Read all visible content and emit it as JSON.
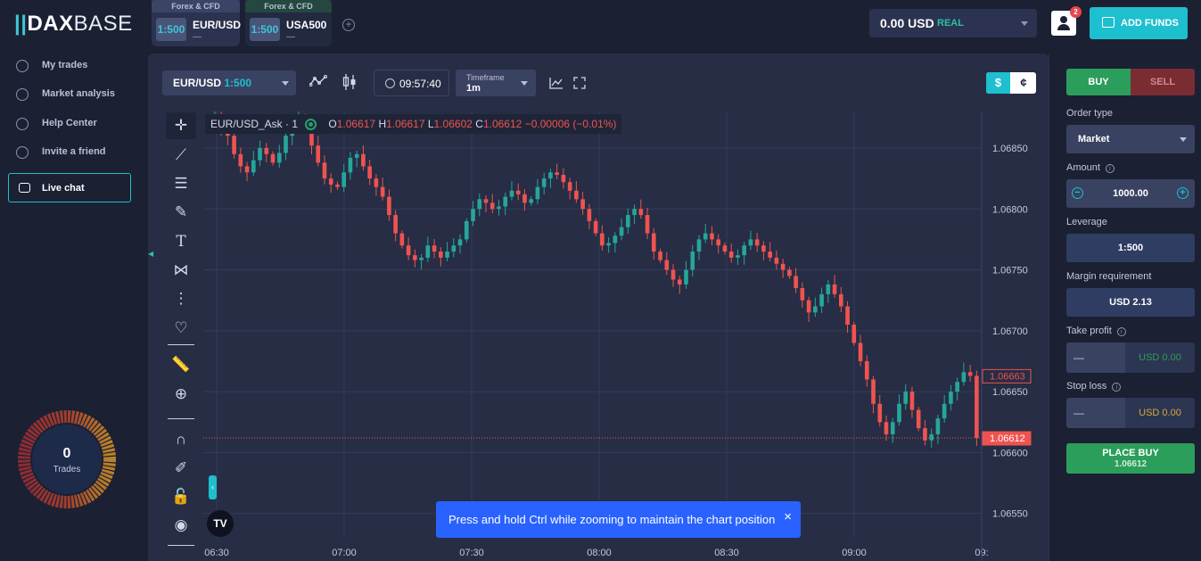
{
  "header": {
    "logo_mark": "||",
    "logo_bold": "DAX",
    "logo_rest": "BASE",
    "tabs": [
      {
        "category": "Forex & CFD",
        "leverage": "1:500",
        "symbol": "EUR/USD",
        "sub": "—"
      },
      {
        "category": "Forex & CFD",
        "leverage": "1:500",
        "symbol": "USA500",
        "sub": "—"
      }
    ],
    "balance": {
      "amount": "0.00 USD",
      "mode": "REAL"
    },
    "notification_count": "2",
    "add_funds_label": "ADD FUNDS"
  },
  "sidebar": {
    "items": [
      {
        "label": "My trades"
      },
      {
        "label": "Market analysis"
      },
      {
        "label": "Help Center"
      },
      {
        "label": "Invite a friend"
      }
    ],
    "live_chat": "Live chat",
    "trades": {
      "value": "0",
      "label": "Trades"
    }
  },
  "chart_toolbar": {
    "symbol": "EUR/USD",
    "symbol_leverage": "1:500",
    "time": "09:57:40",
    "timeframe_label": "Timeframe",
    "timeframe_value": "1m",
    "currency_a": "$",
    "currency_b": "¢"
  },
  "chart_legend": {
    "title": "EUR/USD_Ask · 1",
    "o_label": "O",
    "o": "1.06617",
    "h_label": "H",
    "h": "1.06617",
    "l_label": "L",
    "l": "1.06602",
    "c_label": "C",
    "c": "1.06612",
    "change": "−0.00006 (−0.01%)"
  },
  "chart_data": {
    "type": "candlestick",
    "x_ticks": [
      "06:30",
      "07:00",
      "07:30",
      "08:00",
      "08:30",
      "09:00",
      "09:"
    ],
    "y_ticks": [
      "1.06850",
      "1.06800",
      "1.06750",
      "1.06700",
      "1.06650",
      "1.06600",
      "1.06550"
    ],
    "ylim": [
      1.0653,
      1.0688
    ],
    "price_markers": [
      {
        "value": "1.06663",
        "style": "outline"
      },
      {
        "value": "1.06612",
        "style": "filled"
      }
    ],
    "current_price_line": 1.06612,
    "closes": [
      1.06872,
      1.06875,
      1.06866,
      1.0686,
      1.06845,
      1.06835,
      1.0683,
      1.0684,
      1.0685,
      1.06845,
      1.06838,
      1.06846,
      1.0686,
      1.0687,
      1.06873,
      1.06868,
      1.06852,
      1.06838,
      1.06825,
      1.0682,
      1.06818,
      1.0683,
      1.06842,
      1.06845,
      1.06835,
      1.06825,
      1.06818,
      1.0681,
      1.06795,
      1.0678,
      1.0677,
      1.06762,
      1.06758,
      1.0676,
      1.0677,
      1.06765,
      1.0676,
      1.06765,
      1.0677,
      1.06775,
      1.0679,
      1.068,
      1.06808,
      1.06805,
      1.068,
      1.06802,
      1.0681,
      1.06815,
      1.06812,
      1.06805,
      1.06808,
      1.06818,
      1.06825,
      1.0683,
      1.06828,
      1.06822,
      1.06815,
      1.06808,
      1.068,
      1.0679,
      1.0678,
      1.0677,
      1.06772,
      1.06778,
      1.06785,
      1.06795,
      1.068,
      1.06795,
      1.0678,
      1.06765,
      1.06758,
      1.0675,
      1.06742,
      1.06738,
      1.0675,
      1.06765,
      1.06775,
      1.0678,
      1.06775,
      1.0677,
      1.06765,
      1.0676,
      1.06762,
      1.0677,
      1.06775,
      1.0677,
      1.06765,
      1.0676,
      1.06755,
      1.0675,
      1.06745,
      1.06735,
      1.06725,
      1.06715,
      1.0672,
      1.0673,
      1.06738,
      1.0673,
      1.0672,
      1.06705,
      1.0669,
      1.06675,
      1.0666,
      1.0664,
      1.06625,
      1.06615,
      1.06625,
      1.0664,
      1.0665,
      1.06635,
      1.0662,
      1.0661,
      1.06615,
      1.06628,
      1.0664,
      1.0665,
      1.06658,
      1.06666,
      1.06663,
      1.06612
    ]
  },
  "toast": {
    "text": "Press and hold Ctrl while zooming to maintain the chart position",
    "close": "×"
  },
  "trade_panel": {
    "buy": "BUY",
    "sell": "SELL",
    "order_type_label": "Order type",
    "order_type_value": "Market",
    "amount_label": "Amount",
    "amount_value": "1000.00",
    "leverage_label": "Leverage",
    "leverage_value": "1:500",
    "margin_label": "Margin requirement",
    "margin_value": "USD 2.13",
    "take_profit_label": "Take profit",
    "take_profit_toggle": "—",
    "take_profit_value": "USD 0.00",
    "stop_loss_label": "Stop loss",
    "stop_loss_toggle": "—",
    "stop_loss_value": "USD 0.00",
    "place_label": "PLACE BUY",
    "place_price": "1.06612"
  },
  "colors": {
    "accent": "#1ebfce",
    "buy": "#2c9e5c",
    "sell": "#7a2c33",
    "up": "#26a69a",
    "down": "#ef5350"
  }
}
